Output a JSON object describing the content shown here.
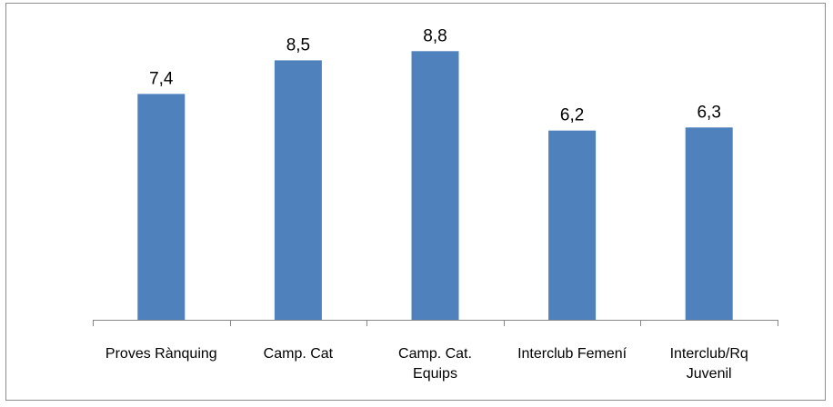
{
  "chart_data": {
    "type": "bar",
    "title": "",
    "xlabel": "",
    "ylabel": "",
    "categories": [
      [
        "Proves Rànquing"
      ],
      [
        "Camp. Cat"
      ],
      [
        "Camp. Cat.",
        "Equips"
      ],
      [
        "Interclub Femení"
      ],
      [
        "Interclub/Rq",
        "Juvenil"
      ]
    ],
    "values": [
      7.4,
      8.5,
      8.8,
      6.2,
      6.3
    ],
    "value_labels": [
      "7,4",
      "8,5",
      "8,8",
      "6,2",
      "6,3"
    ],
    "ylim": [
      0,
      10
    ],
    "grid": false,
    "legend": "none",
    "colors": {
      "bar": "#4f81bd",
      "axis": "#868686",
      "border": "#8c8c8c"
    }
  }
}
